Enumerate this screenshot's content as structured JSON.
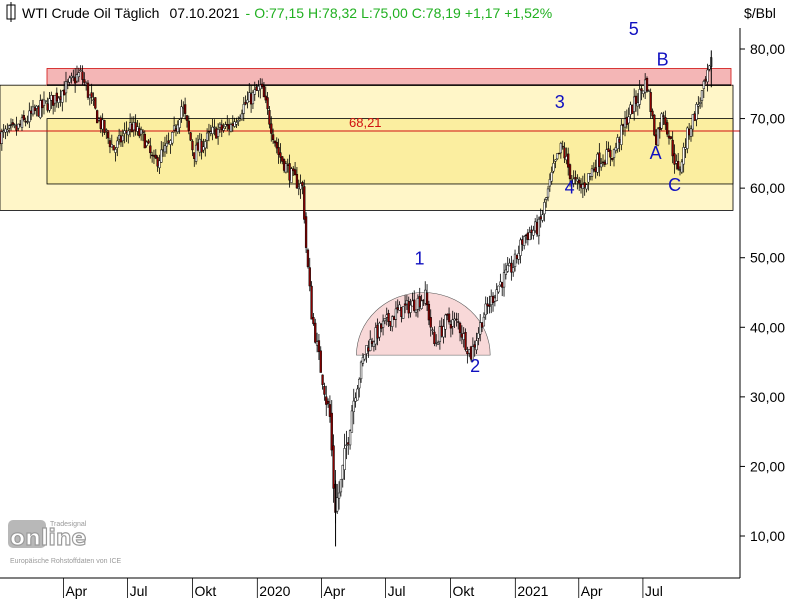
{
  "header": {
    "title": "WTI Crude Oil Täglich",
    "date": "07.10.2021",
    "open": "O:77,15",
    "high": "H:78,32",
    "low": "L:75,00",
    "close": "C:78,19",
    "change": "+1,17",
    "change_pct": "+1,52%",
    "unit": "$/Bbl"
  },
  "colors": {
    "positive": "#20b020",
    "candle_up": "#ffffff",
    "candle_down": "#8b0000",
    "resistance_zone": "#f4b6b6",
    "support_zone_outer": "#fff6c8",
    "support_zone_inner": "#fbeea0",
    "rounded_bottom": "#f8d8d8",
    "level_line": "#d01010",
    "wave_label": "#1010c0"
  },
  "logo": {
    "brand": "Tradesignal",
    "product": "online",
    "source_note": "Europäische Rohstoffdaten von ICE"
  },
  "chart_data": {
    "type": "line",
    "title": "WTI Crude Oil Täglich",
    "ylabel": "$/Bbl",
    "ylim": [
      5,
      83
    ],
    "x_tick_labels": [
      "Apr",
      "Jul",
      "Okt",
      "2020",
      "Apr",
      "Jul",
      "Okt",
      "2021",
      "Apr",
      "Jul"
    ],
    "y_tick_labels": [
      "10,00",
      "20,00",
      "30,00",
      "40,00",
      "50,00",
      "60,00",
      "70,00",
      "80,00"
    ],
    "y_tick_values": [
      10,
      20,
      30,
      40,
      50,
      60,
      70,
      80
    ],
    "series": [
      {
        "x": [
          "2019-01-02",
          "2019-01-25",
          "2019-02-20",
          "2019-03-15",
          "2019-04-05",
          "2019-04-25",
          "2019-05-20",
          "2019-06-12",
          "2019-07-05",
          "2019-07-25",
          "2019-08-07",
          "2019-09-01",
          "2019-09-16",
          "2019-10-03",
          "2019-10-30",
          "2019-11-25",
          "2019-12-10",
          "2020-01-06",
          "2020-01-31",
          "2020-02-20",
          "2020-03-06",
          "2020-03-09",
          "2020-03-18",
          "2020-03-31",
          "2020-04-13",
          "2020-04-20",
          "2020-04-28",
          "2020-05-15",
          "2020-06-03",
          "2020-06-25",
          "2020-07-15",
          "2020-08-12",
          "2020-08-26",
          "2020-09-08",
          "2020-09-25",
          "2020-10-12",
          "2020-10-30",
          "2020-11-16",
          "2020-12-08",
          "2020-12-30",
          "2021-01-13",
          "2021-02-04",
          "2021-02-25",
          "2021-03-08",
          "2021-03-23",
          "2021-04-05",
          "2021-04-28",
          "2021-05-20",
          "2021-06-10",
          "2021-06-24",
          "2021-07-06",
          "2021-07-19",
          "2021-07-30",
          "2021-08-20",
          "2021-09-03",
          "2021-09-28",
          "2021-10-07"
        ],
        "values": [
          67.5,
          68.5,
          71,
          72.5,
          74.5,
          76.5,
          70,
          65.5,
          69,
          67,
          63.5,
          66.5,
          72,
          65,
          68,
          69,
          71.5,
          74.5,
          65,
          61.5,
          60,
          53,
          42,
          34,
          27,
          14,
          17,
          29,
          37,
          40,
          42,
          43.5,
          44.5,
          37.5,
          41,
          40.5,
          36,
          41.5,
          46,
          49,
          53,
          54.5,
          63,
          66,
          61,
          60,
          64,
          65,
          70.5,
          73,
          75.5,
          67,
          71,
          62,
          68,
          75,
          78.2
        ]
      }
    ],
    "annotations": {
      "horizontal_level": {
        "value": 68.21,
        "label": "68,21"
      },
      "zones": [
        {
          "name": "resistance",
          "from": 74.8,
          "to": 77.2
        },
        {
          "name": "support-outer",
          "from": 56.8,
          "to": 74.8
        },
        {
          "name": "support-inner",
          "from": 60.6,
          "to": 70.0
        }
      ],
      "rounded_bottom": {
        "from": "2020-06-01",
        "to": "2020-11-15",
        "base": 36,
        "top": 45
      },
      "wave_labels": [
        {
          "label": "1",
          "x": "2020-08-18",
          "y": 49
        },
        {
          "label": "2",
          "x": "2020-11-05",
          "y": 33.6
        },
        {
          "label": "3",
          "x": "2021-03-05",
          "y": 71.5
        },
        {
          "label": "4",
          "x": "2021-03-19",
          "y": 59.2
        },
        {
          "label": "5",
          "x": "2021-06-18",
          "y": 82
        },
        {
          "label": "A",
          "x": "2021-07-19",
          "y": 64.2
        },
        {
          "label": "B",
          "x": "2021-07-29",
          "y": 77.6
        },
        {
          "label": "C",
          "x": "2021-08-15",
          "y": 59.6
        }
      ]
    }
  }
}
